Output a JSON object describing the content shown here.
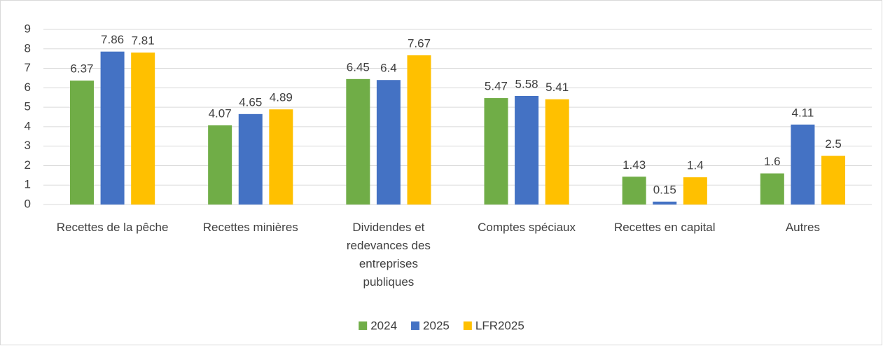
{
  "chart_data": {
    "type": "bar",
    "categories": [
      "Recettes de la pêche",
      "Recettes minières",
      "Dividendes et redevances des entreprises publiques",
      "Comptes spéciaux",
      "Recettes en capital",
      "Autres"
    ],
    "series": [
      {
        "name": "2024",
        "color": "#70ad47",
        "values": [
          6.37,
          4.07,
          6.45,
          5.47,
          1.43,
          1.6
        ]
      },
      {
        "name": "2025",
        "color": "#4472c4",
        "values": [
          7.86,
          4.65,
          6.4,
          5.58,
          0.15,
          4.11
        ]
      },
      {
        "name": "LFR2025",
        "color": "#ffc000",
        "values": [
          7.81,
          4.89,
          7.67,
          5.41,
          1.4,
          2.5
        ]
      }
    ],
    "ylim": [
      0,
      9
    ],
    "yticks": [
      0,
      1,
      2,
      3,
      4,
      5,
      6,
      7,
      8,
      9
    ],
    "grid": true,
    "legend": "bottom"
  }
}
